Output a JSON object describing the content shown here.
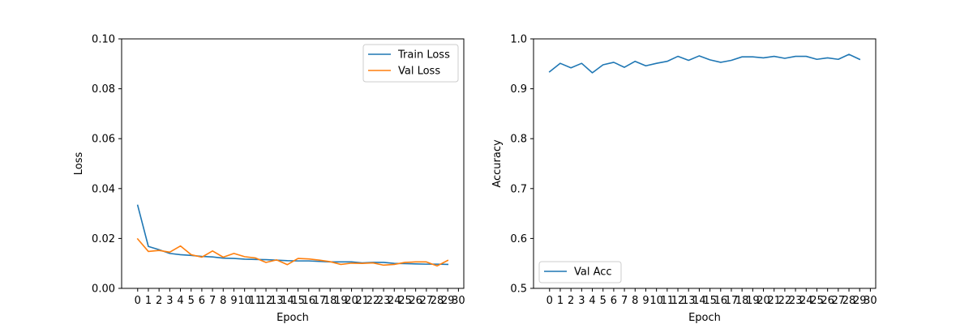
{
  "chart_data": [
    {
      "type": "line",
      "title": "",
      "xlabel": "Epoch",
      "ylabel": "Loss",
      "xlim": [
        -1.5,
        30.5
      ],
      "ylim": [
        0,
        0.1
      ],
      "xticks": [
        0,
        1,
        2,
        3,
        4,
        5,
        6,
        7,
        8,
        9,
        10,
        11,
        12,
        13,
        14,
        15,
        16,
        17,
        18,
        19,
        20,
        21,
        22,
        23,
        24,
        25,
        26,
        27,
        28,
        29,
        30
      ],
      "xtick_labels": [
        "0",
        "1",
        "2",
        "3",
        "4",
        "5",
        "6",
        "7",
        "8",
        "9",
        "10",
        "11",
        "12",
        "13",
        "14",
        "15",
        "16",
        "17",
        "18",
        "19",
        "20",
        "21",
        "22",
        "23",
        "24",
        "25",
        "26",
        "27",
        "28",
        "29",
        "30"
      ],
      "yticks": [
        0,
        0.02,
        0.04,
        0.06,
        0.08,
        0.1
      ],
      "ytick_labels": [
        "0.00",
        "0.02",
        "0.04",
        "0.06",
        "0.08",
        "0.10"
      ],
      "grid": false,
      "legend": "top-right",
      "x": [
        0,
        1,
        2,
        3,
        4,
        5,
        6,
        7,
        8,
        9,
        10,
        11,
        12,
        13,
        14,
        15,
        16,
        17,
        18,
        19,
        20,
        21,
        22,
        23,
        24,
        25,
        26,
        27,
        28,
        29
      ],
      "series": [
        {
          "name": "Train Loss",
          "color": "#1f77b4",
          "values": [
            0.0333,
            0.0168,
            0.0155,
            0.014,
            0.0135,
            0.0132,
            0.0128,
            0.0126,
            0.0121,
            0.012,
            0.0117,
            0.0116,
            0.0115,
            0.0113,
            0.0111,
            0.011,
            0.011,
            0.0108,
            0.0106,
            0.0106,
            0.0106,
            0.0102,
            0.0104,
            0.0104,
            0.01,
            0.0099,
            0.0098,
            0.0097,
            0.0097,
            0.0096
          ]
        },
        {
          "name": "Val Loss",
          "color": "#ff7f0e",
          "values": [
            0.0198,
            0.0148,
            0.0152,
            0.0145,
            0.017,
            0.0135,
            0.0125,
            0.015,
            0.0125,
            0.014,
            0.0127,
            0.0122,
            0.0104,
            0.0114,
            0.0095,
            0.012,
            0.0118,
            0.0113,
            0.0107,
            0.0096,
            0.0101,
            0.01,
            0.0102,
            0.0093,
            0.0096,
            0.0104,
            0.0106,
            0.0106,
            0.009,
            0.0112
          ]
        }
      ]
    },
    {
      "type": "line",
      "title": "",
      "xlabel": "Epoch",
      "ylabel": "Accuracy",
      "xlim": [
        -1.5,
        30.5
      ],
      "ylim": [
        0.5,
        1.0
      ],
      "xticks": [
        0,
        1,
        2,
        3,
        4,
        5,
        6,
        7,
        8,
        9,
        10,
        11,
        12,
        13,
        14,
        15,
        16,
        17,
        18,
        19,
        20,
        21,
        22,
        23,
        24,
        25,
        26,
        27,
        28,
        29,
        30
      ],
      "xtick_labels": [
        "0",
        "1",
        "2",
        "3",
        "4",
        "5",
        "6",
        "7",
        "8",
        "9",
        "10",
        "11",
        "12",
        "13",
        "14",
        "15",
        "16",
        "17",
        "18",
        "19",
        "20",
        "21",
        "22",
        "23",
        "24",
        "25",
        "26",
        "27",
        "28",
        "29",
        "30"
      ],
      "yticks": [
        0.5,
        0.6,
        0.7,
        0.8,
        0.9,
        1.0
      ],
      "ytick_labels": [
        "0.5",
        "0.6",
        "0.7",
        "0.8",
        "0.9",
        "1.0"
      ],
      "grid": false,
      "legend": "bottom-left",
      "x": [
        0,
        1,
        2,
        3,
        4,
        5,
        6,
        7,
        8,
        9,
        10,
        11,
        12,
        13,
        14,
        15,
        16,
        17,
        18,
        19,
        20,
        21,
        22,
        23,
        24,
        25,
        26,
        27,
        28,
        29
      ],
      "series": [
        {
          "name": "Val Acc",
          "color": "#1f77b4",
          "values": [
            0.934,
            0.951,
            0.942,
            0.951,
            0.932,
            0.948,
            0.953,
            0.943,
            0.955,
            0.946,
            0.951,
            0.955,
            0.965,
            0.957,
            0.966,
            0.958,
            0.953,
            0.957,
            0.964,
            0.964,
            0.962,
            0.965,
            0.961,
            0.965,
            0.965,
            0.959,
            0.962,
            0.959,
            0.969,
            0.959
          ]
        }
      ]
    }
  ]
}
